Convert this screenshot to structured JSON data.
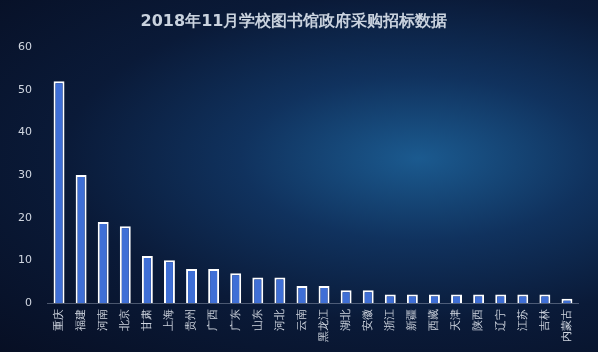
{
  "chart_data": {
    "type": "bar",
    "title": "2018年11月学校图书馆政府采购招标数据",
    "categories": [
      "重庆",
      "福建",
      "河南",
      "北京",
      "甘肃",
      "上海",
      "贵州",
      "广西",
      "广东",
      "山东",
      "河北",
      "云南",
      "黑龙江",
      "湖北",
      "安徽",
      "浙江",
      "新疆",
      "西藏",
      "天津",
      "陕西",
      "辽宁",
      "江苏",
      "吉林",
      "内蒙古"
    ],
    "values": [
      52,
      30,
      19,
      18,
      11,
      10,
      8,
      8,
      7,
      6,
      6,
      4,
      4,
      3,
      3,
      2,
      2,
      2,
      2,
      2,
      2,
      2,
      2,
      1
    ],
    "color": "#3f6fd6",
    "ylim": [
      0,
      60
    ],
    "yticks": [
      0,
      10,
      20,
      30,
      40,
      50,
      60
    ],
    "grid": false
  }
}
